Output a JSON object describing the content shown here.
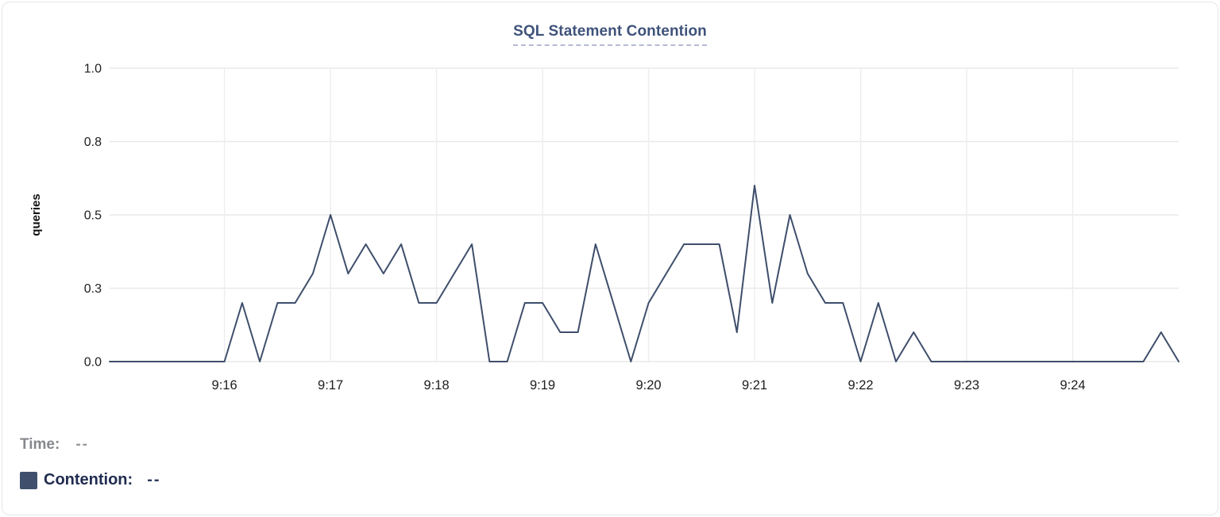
{
  "header": {
    "title": "SQL Statement Contention"
  },
  "readout": {
    "time_label": "Time:",
    "time_value": "--",
    "series_label": "Contention:",
    "series_value": "--"
  },
  "colors": {
    "series": "#3e4e6b",
    "swatch": "#40506c",
    "title": "#3f537a",
    "title_underline": "#b3bad8",
    "grid_horizontal": "#e9e9e9",
    "grid_vertical": "#ededee",
    "tick_text": "#1e1e20",
    "axis_label_text": "#111111",
    "card_border": "#e4e6e9"
  },
  "chart_data": {
    "type": "line",
    "title": "SQL Statement Contention",
    "xlabel": "",
    "ylabel": "queries",
    "ylim": [
      0,
      1
    ],
    "grid": true,
    "legend_position": "below-left",
    "x_range": [
      "9:14:55",
      "9:25:00"
    ],
    "y_ticks": [
      {
        "label": "1.0",
        "pos": 1.0
      },
      {
        "label": "0.8",
        "pos": 0.75
      },
      {
        "label": "0.5",
        "pos": 0.5
      },
      {
        "label": "0.3",
        "pos": 0.25
      },
      {
        "label": "0.0",
        "pos": 0.0
      }
    ],
    "x_ticks": [
      "9:16",
      "9:17",
      "9:18",
      "9:19",
      "9:20",
      "9:21",
      "9:22",
      "9:23",
      "9:24"
    ],
    "series": [
      {
        "name": "Contention",
        "unit": "queries",
        "color": "#3e4e6b",
        "points": [
          [
            "9:14:55",
            0
          ],
          [
            "9:15:00",
            0
          ],
          [
            "9:15:10",
            0
          ],
          [
            "9:15:20",
            0
          ],
          [
            "9:15:30",
            0
          ],
          [
            "9:15:40",
            0
          ],
          [
            "9:15:50",
            0
          ],
          [
            "9:16:00",
            0
          ],
          [
            "9:16:10",
            0.2
          ],
          [
            "9:16:20",
            0
          ],
          [
            "9:16:30",
            0.2
          ],
          [
            "9:16:40",
            0.2
          ],
          [
            "9:16:50",
            0.3
          ],
          [
            "9:17:00",
            0.5
          ],
          [
            "9:17:10",
            0.3
          ],
          [
            "9:17:20",
            0.4
          ],
          [
            "9:17:30",
            0.3
          ],
          [
            "9:17:40",
            0.4
          ],
          [
            "9:17:50",
            0.2
          ],
          [
            "9:18:00",
            0.2
          ],
          [
            "9:18:10",
            0.3
          ],
          [
            "9:18:20",
            0.4
          ],
          [
            "9:18:30",
            0
          ],
          [
            "9:18:40",
            0
          ],
          [
            "9:18:50",
            0.2
          ],
          [
            "9:19:00",
            0.2
          ],
          [
            "9:19:10",
            0.1
          ],
          [
            "9:19:20",
            0.1
          ],
          [
            "9:19:30",
            0.4
          ],
          [
            "9:19:40",
            0.2
          ],
          [
            "9:19:50",
            0
          ],
          [
            "9:20:00",
            0.2
          ],
          [
            "9:20:10",
            0.3
          ],
          [
            "9:20:20",
            0.4
          ],
          [
            "9:20:30",
            0.4
          ],
          [
            "9:20:40",
            0.4
          ],
          [
            "9:20:50",
            0.1
          ],
          [
            "9:21:00",
            0.6
          ],
          [
            "9:21:10",
            0.2
          ],
          [
            "9:21:20",
            0.5
          ],
          [
            "9:21:30",
            0.3
          ],
          [
            "9:21:40",
            0.2
          ],
          [
            "9:21:50",
            0.2
          ],
          [
            "9:22:00",
            0
          ],
          [
            "9:22:10",
            0.2
          ],
          [
            "9:22:20",
            0
          ],
          [
            "9:22:30",
            0.1
          ],
          [
            "9:22:40",
            0
          ],
          [
            "9:22:50",
            0
          ],
          [
            "9:23:00",
            0
          ],
          [
            "9:23:10",
            0
          ],
          [
            "9:23:20",
            0
          ],
          [
            "9:23:30",
            0
          ],
          [
            "9:23:40",
            0
          ],
          [
            "9:23:50",
            0
          ],
          [
            "9:24:00",
            0
          ],
          [
            "9:24:10",
            0
          ],
          [
            "9:24:20",
            0
          ],
          [
            "9:24:30",
            0
          ],
          [
            "9:24:40",
            0
          ],
          [
            "9:24:50",
            0.1
          ],
          [
            "9:25:00",
            0
          ]
        ]
      }
    ]
  }
}
